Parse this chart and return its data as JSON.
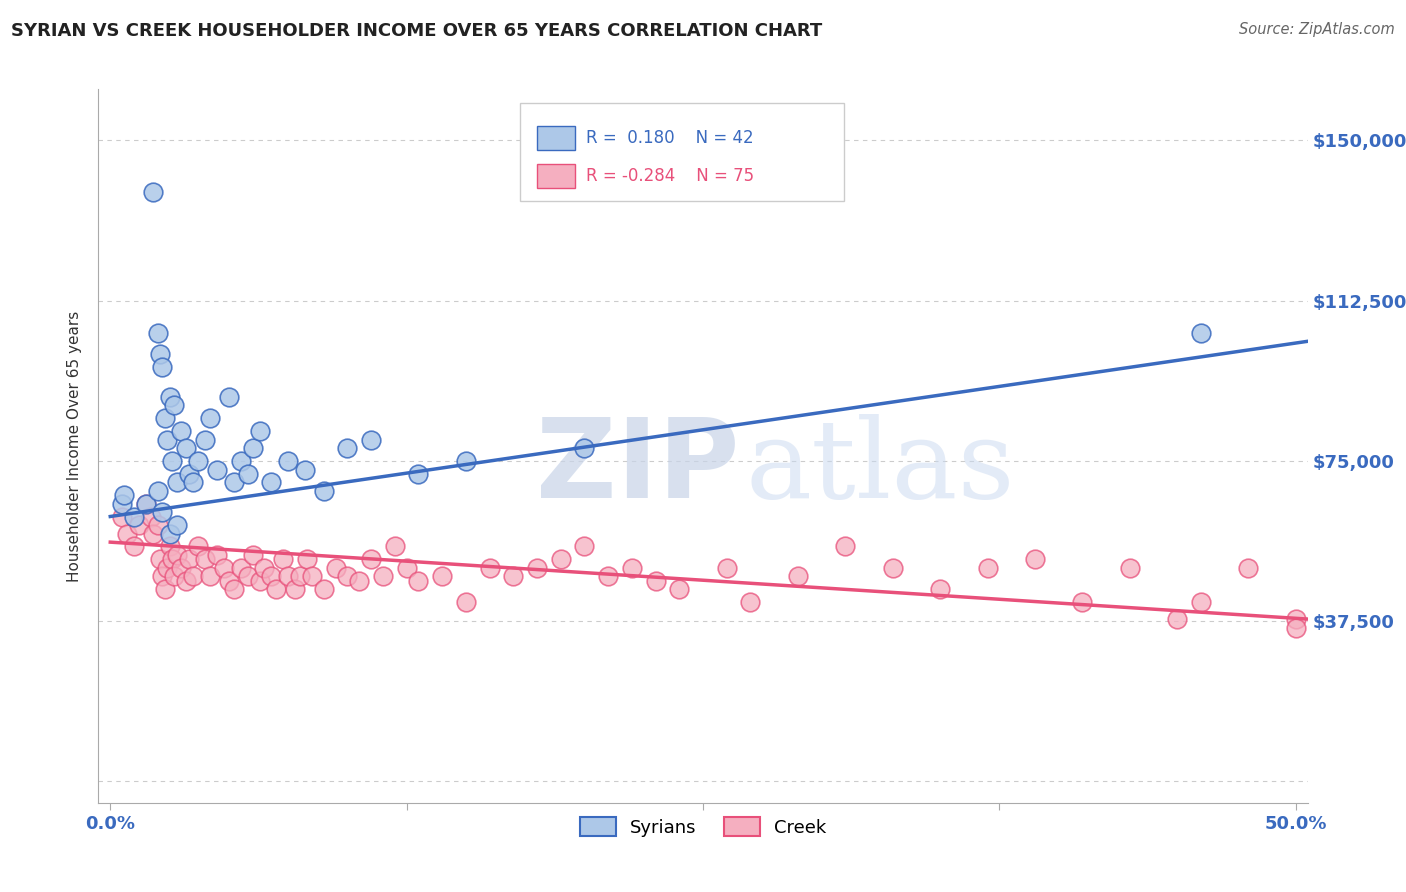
{
  "title": "SYRIAN VS CREEK HOUSEHOLDER INCOME OVER 65 YEARS CORRELATION CHART",
  "source": "Source: ZipAtlas.com",
  "ylabel": "Householder Income Over 65 years",
  "xlim": [
    -0.005,
    0.505
  ],
  "ylim": [
    -5000,
    162000
  ],
  "yticks": [
    0,
    37500,
    75000,
    112500,
    150000
  ],
  "ytick_labels": [
    "",
    "$37,500",
    "$75,000",
    "$112,500",
    "$150,000"
  ],
  "xticks": [
    0.0,
    0.125,
    0.25,
    0.375,
    0.5
  ],
  "xtick_labels": [
    "0.0%",
    "",
    "",
    "",
    "50.0%"
  ],
  "syrian_R": 0.18,
  "syrian_N": 42,
  "creek_R": -0.284,
  "creek_N": 75,
  "syrian_color": "#adc8e8",
  "creek_color": "#f5afc0",
  "syrian_line_color": "#3a6abf",
  "creek_line_color": "#e8507a",
  "grid_color": "#cccccc",
  "background_color": "#ffffff",
  "watermark_zip": "ZIP",
  "watermark_atlas": "atlas",
  "watermark_color": "#d0d8e8",
  "syrian_line_x0": 0.0,
  "syrian_line_y0": 62000,
  "syrian_line_x1": 0.505,
  "syrian_line_y1": 103000,
  "creek_line_x0": 0.0,
  "creek_line_y0": 56000,
  "creek_line_x1": 0.505,
  "creek_line_y1": 38000,
  "syrian_x": [
    0.005,
    0.006,
    0.018,
    0.02,
    0.021,
    0.022,
    0.023,
    0.024,
    0.025,
    0.026,
    0.027,
    0.028,
    0.03,
    0.032,
    0.033,
    0.035,
    0.037,
    0.04,
    0.042,
    0.045,
    0.05,
    0.052,
    0.055,
    0.058,
    0.06,
    0.063,
    0.068,
    0.075,
    0.082,
    0.09,
    0.1,
    0.11,
    0.13,
    0.15,
    0.2,
    0.46,
    0.01,
    0.015,
    0.02,
    0.022,
    0.025,
    0.028
  ],
  "syrian_y": [
    65000,
    67000,
    138000,
    105000,
    100000,
    97000,
    85000,
    80000,
    90000,
    75000,
    88000,
    70000,
    82000,
    78000,
    72000,
    70000,
    75000,
    80000,
    85000,
    73000,
    90000,
    70000,
    75000,
    72000,
    78000,
    82000,
    70000,
    75000,
    73000,
    68000,
    78000,
    80000,
    72000,
    75000,
    78000,
    105000,
    62000,
    65000,
    68000,
    63000,
    58000,
    60000
  ],
  "creek_x": [
    0.005,
    0.007,
    0.01,
    0.012,
    0.015,
    0.017,
    0.018,
    0.02,
    0.021,
    0.022,
    0.023,
    0.024,
    0.025,
    0.026,
    0.027,
    0.028,
    0.03,
    0.032,
    0.033,
    0.035,
    0.037,
    0.04,
    0.042,
    0.045,
    0.048,
    0.05,
    0.052,
    0.055,
    0.058,
    0.06,
    0.063,
    0.065,
    0.068,
    0.07,
    0.073,
    0.075,
    0.078,
    0.08,
    0.083,
    0.085,
    0.09,
    0.095,
    0.1,
    0.105,
    0.11,
    0.115,
    0.12,
    0.125,
    0.13,
    0.14,
    0.15,
    0.16,
    0.17,
    0.18,
    0.19,
    0.2,
    0.21,
    0.22,
    0.23,
    0.24,
    0.26,
    0.27,
    0.29,
    0.31,
    0.33,
    0.35,
    0.37,
    0.39,
    0.41,
    0.43,
    0.45,
    0.46,
    0.48,
    0.5,
    0.5
  ],
  "creek_y": [
    62000,
    58000,
    55000,
    60000,
    65000,
    62000,
    58000,
    60000,
    52000,
    48000,
    45000,
    50000,
    55000,
    52000,
    48000,
    53000,
    50000,
    47000,
    52000,
    48000,
    55000,
    52000,
    48000,
    53000,
    50000,
    47000,
    45000,
    50000,
    48000,
    53000,
    47000,
    50000,
    48000,
    45000,
    52000,
    48000,
    45000,
    48000,
    52000,
    48000,
    45000,
    50000,
    48000,
    47000,
    52000,
    48000,
    55000,
    50000,
    47000,
    48000,
    42000,
    50000,
    48000,
    50000,
    52000,
    55000,
    48000,
    50000,
    47000,
    45000,
    50000,
    42000,
    48000,
    55000,
    50000,
    45000,
    50000,
    52000,
    42000,
    50000,
    38000,
    42000,
    50000,
    38000,
    36000
  ]
}
